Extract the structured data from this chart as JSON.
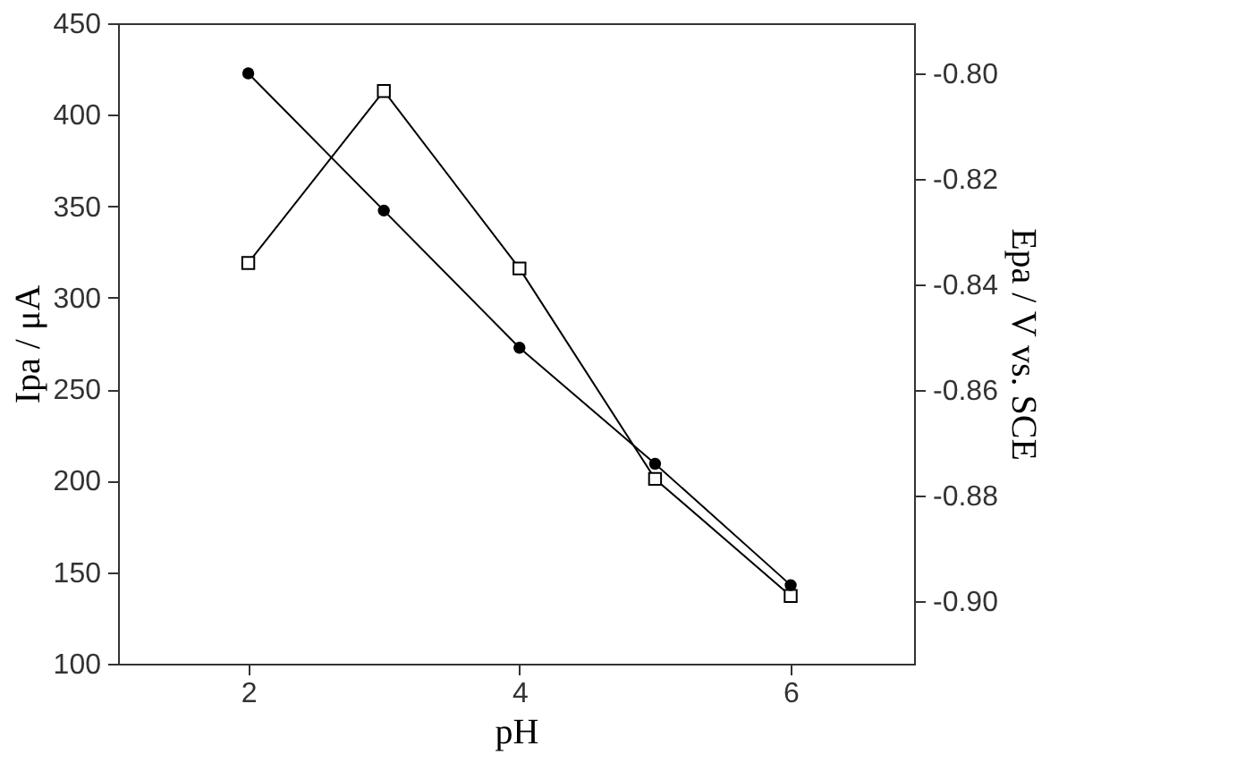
{
  "chart_data": {
    "type": "line",
    "xlabel": "pH",
    "ylabel": "Ipa / μA",
    "y2label": "Epa / V vs. SCE",
    "x": [
      2,
      3,
      4,
      5,
      6
    ],
    "series": [
      {
        "color": "#000000",
        "marker": "square",
        "values": [
          319,
          413,
          316,
          201,
          137
        ]
      },
      {
        "color": "#000000",
        "marker": "circle",
        "axis": "y2",
        "values": [
          -0.8,
          -0.826,
          -0.852,
          -0.874,
          -0.897
        ]
      }
    ],
    "xlim": [
      1.04,
      6.91
    ],
    "xticks": [
      2,
      4,
      6
    ],
    "ylim": [
      100,
      450
    ],
    "yticks": [
      100,
      150,
      200,
      250,
      300,
      350,
      400,
      450
    ],
    "y2lim": [
      -0.9119,
      -0.7905
    ],
    "y2ticks": [
      {
        "value": -0.9,
        "label": "-0.90"
      },
      {
        "value": -0.88,
        "label": "-0.88"
      },
      {
        "value": -0.86,
        "label": "-0.86"
      },
      {
        "value": -0.84,
        "label": "-0.84"
      },
      {
        "value": -0.82,
        "label": "-0.82"
      },
      {
        "value": -0.8,
        "label": "-0.80"
      }
    ],
    "grid": false,
    "line_style": "solid"
  }
}
